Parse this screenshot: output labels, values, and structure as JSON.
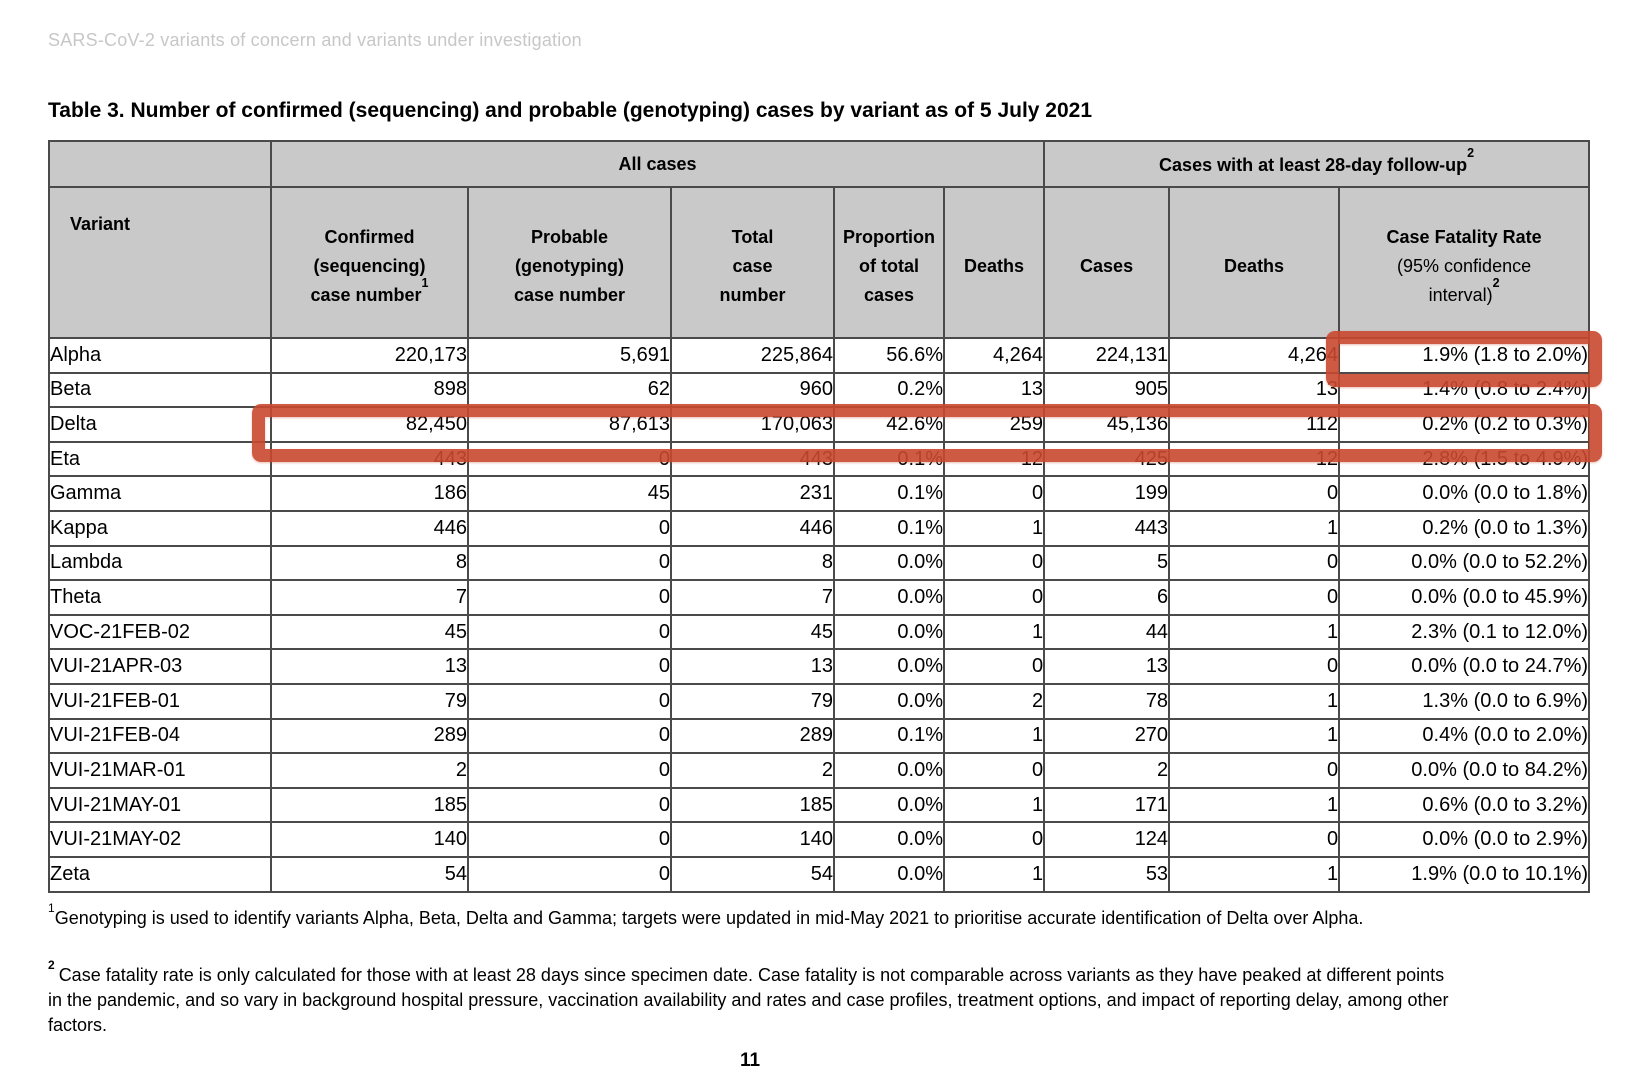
{
  "page": {
    "running_header": "SARS-CoV-2 variants of concern and variants under investigation",
    "title": "Table 3. Number of confirmed (sequencing) and probable (genotyping) cases by variant as of 5 July 2021",
    "page_number": "11",
    "annotation_color": "#c9482f",
    "header_fill": "#c9c9c9"
  },
  "table": {
    "group_all_cases": "All cases",
    "group_follow_up": "Cases with at least 28-day follow-up",
    "group_follow_up_sup": "2",
    "headers": {
      "variant": "Variant",
      "confirmed": "Confirmed\n(sequencing)\ncase number",
      "confirmed_sup": "1",
      "probable": "Probable\n(genotyping)\ncase number",
      "total": "Total\ncase\nnumber",
      "proportion": "Proportion\nof total\ncases",
      "deaths": "Deaths",
      "fu_cases": "Cases",
      "fu_deaths": "Deaths",
      "cfr_title": "Case Fatality Rate",
      "cfr_sub": "(95% confidence\ninterval)",
      "cfr_sup": "2"
    },
    "rows": [
      {
        "variant": "Alpha",
        "confirmed": "220,173",
        "probable": "5,691",
        "total": "225,864",
        "proportion": "56.6%",
        "deaths": "4,264",
        "fu_cases": "224,131",
        "fu_deaths": "4,264",
        "cfr": "1.9% (1.8 to 2.0%)"
      },
      {
        "variant": "Beta",
        "confirmed": "898",
        "probable": "62",
        "total": "960",
        "proportion": "0.2%",
        "deaths": "13",
        "fu_cases": "905",
        "fu_deaths": "13",
        "cfr": "1.4% (0.8 to 2.4%)"
      },
      {
        "variant": "Delta",
        "confirmed": "82,450",
        "probable": "87,613",
        "total": "170,063",
        "proportion": "42.6%",
        "deaths": "259",
        "fu_cases": "45,136",
        "fu_deaths": "112",
        "cfr": "0.2% (0.2 to 0.3%)"
      },
      {
        "variant": "Eta",
        "confirmed": "443",
        "probable": "0",
        "total": "443",
        "proportion": "0.1%",
        "deaths": "12",
        "fu_cases": "425",
        "fu_deaths": "12",
        "cfr": "2.8% (1.5 to 4.9%)"
      },
      {
        "variant": "Gamma",
        "confirmed": "186",
        "probable": "45",
        "total": "231",
        "proportion": "0.1%",
        "deaths": "0",
        "fu_cases": "199",
        "fu_deaths": "0",
        "cfr": "0.0% (0.0 to 1.8%)"
      },
      {
        "variant": "Kappa",
        "confirmed": "446",
        "probable": "0",
        "total": "446",
        "proportion": "0.1%",
        "deaths": "1",
        "fu_cases": "443",
        "fu_deaths": "1",
        "cfr": "0.2% (0.0 to 1.3%)"
      },
      {
        "variant": "Lambda",
        "confirmed": "8",
        "probable": "0",
        "total": "8",
        "proportion": "0.0%",
        "deaths": "0",
        "fu_cases": "5",
        "fu_deaths": "0",
        "cfr": "0.0% (0.0 to 52.2%)"
      },
      {
        "variant": "Theta",
        "confirmed": "7",
        "probable": "0",
        "total": "7",
        "proportion": "0.0%",
        "deaths": "0",
        "fu_cases": "6",
        "fu_deaths": "0",
        "cfr": "0.0% (0.0 to 45.9%)"
      },
      {
        "variant": "VOC-21FEB-02",
        "confirmed": "45",
        "probable": "0",
        "total": "45",
        "proportion": "0.0%",
        "deaths": "1",
        "fu_cases": "44",
        "fu_deaths": "1",
        "cfr": "2.3% (0.1 to 12.0%)"
      },
      {
        "variant": "VUI-21APR-03",
        "confirmed": "13",
        "probable": "0",
        "total": "13",
        "proportion": "0.0%",
        "deaths": "0",
        "fu_cases": "13",
        "fu_deaths": "0",
        "cfr": "0.0% (0.0 to 24.7%)"
      },
      {
        "variant": "VUI-21FEB-01",
        "confirmed": "79",
        "probable": "0",
        "total": "79",
        "proportion": "0.0%",
        "deaths": "2",
        "fu_cases": "78",
        "fu_deaths": "1",
        "cfr": "1.3% (0.0 to 6.9%)"
      },
      {
        "variant": "VUI-21FEB-04",
        "confirmed": "289",
        "probable": "0",
        "total": "289",
        "proportion": "0.1%",
        "deaths": "1",
        "fu_cases": "270",
        "fu_deaths": "1",
        "cfr": "0.4% (0.0 to 2.0%)"
      },
      {
        "variant": "VUI-21MAR-01",
        "confirmed": "2",
        "probable": "0",
        "total": "2",
        "proportion": "0.0%",
        "deaths": "0",
        "fu_cases": "2",
        "fu_deaths": "0",
        "cfr": "0.0% (0.0 to 84.2%)"
      },
      {
        "variant": "VUI-21MAY-01",
        "confirmed": "185",
        "probable": "0",
        "total": "185",
        "proportion": "0.0%",
        "deaths": "1",
        "fu_cases": "171",
        "fu_deaths": "1",
        "cfr": "0.6% (0.0 to 3.2%)"
      },
      {
        "variant": "VUI-21MAY-02",
        "confirmed": "140",
        "probable": "0",
        "total": "140",
        "proportion": "0.0%",
        "deaths": "0",
        "fu_cases": "124",
        "fu_deaths": "0",
        "cfr": "0.0% (0.0 to 2.9%)"
      },
      {
        "variant": "Zeta",
        "confirmed": "54",
        "probable": "0",
        "total": "54",
        "proportion": "0.0%",
        "deaths": "1",
        "fu_cases": "53",
        "fu_deaths": "1",
        "cfr": "1.9% (0.0 to 10.1%)"
      }
    ]
  },
  "footnotes": {
    "f1_sup": "1",
    "f1_text": "Genotyping is used to identify variants Alpha, Beta, Delta and Gamma; targets were updated in mid-May 2021 to prioritise accurate identification of Delta over Alpha.",
    "f2_sup": "2",
    "f2_text": "Case fatality rate is only calculated for those with at least 28 days since specimen date. Case fatality is not comparable across variants as they have peaked at different points in the pandemic, and so vary in background hospital pressure, vaccination availability and rates and case profiles, treatment options, and impact of reporting delay, among other factors."
  }
}
